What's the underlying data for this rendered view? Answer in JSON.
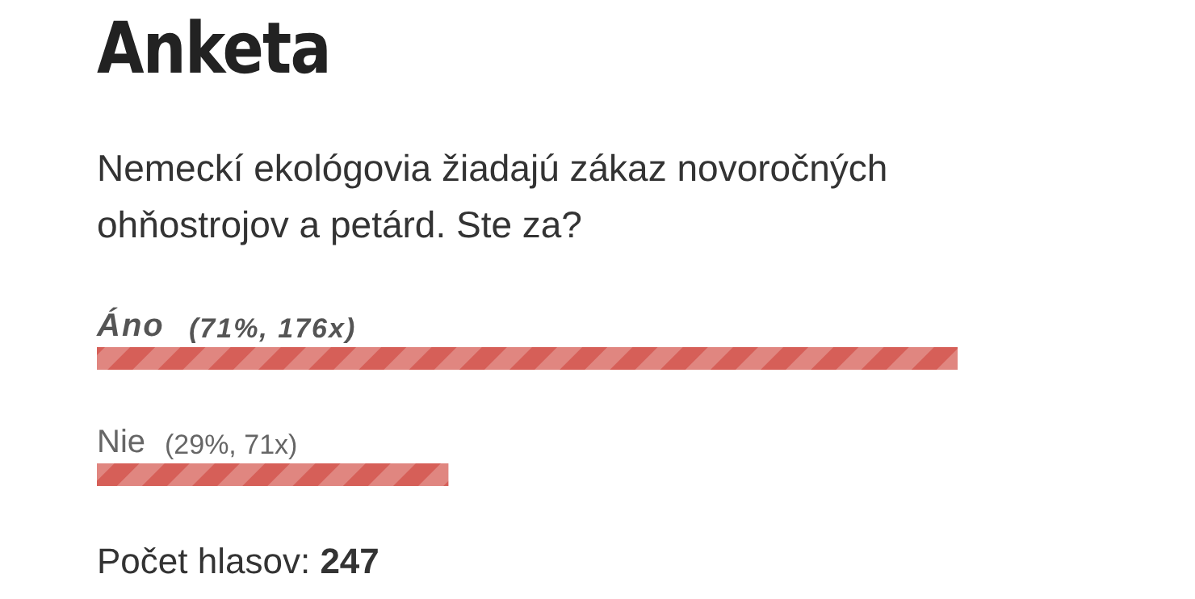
{
  "chart_data": {
    "type": "bar",
    "orientation": "horizontal",
    "title": "Anketa",
    "subtitle": "Nemeckí ekológovia žiadajú zákaz novoročných ohňostrojov a petárd. Ste za?",
    "categories": [
      "Áno",
      "Nie"
    ],
    "values": [
      71,
      29
    ],
    "value_labels": [
      "(71%, 176x)",
      "(29%, 71x)"
    ],
    "color": "#d65f58",
    "annotations": [
      "Počet hlasov: 247"
    ]
  }
}
